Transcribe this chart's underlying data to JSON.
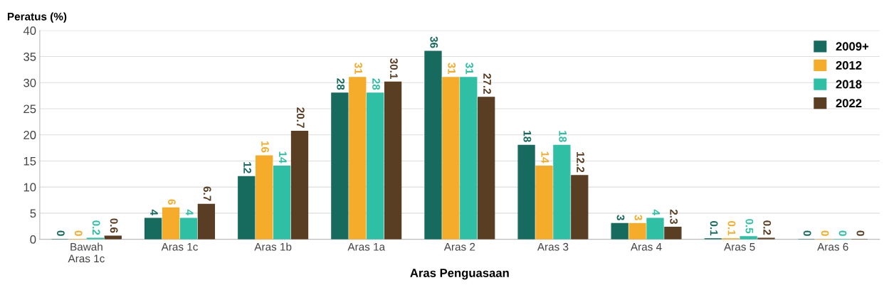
{
  "chart_data": {
    "type": "bar",
    "ylabel": "Peratus (%)",
    "xlabel": "Aras Penguasaan",
    "categories": [
      "Bawah\nAras 1c",
      "Aras 1c",
      "Aras 1b",
      "Aras 1a",
      "Aras 2",
      "Aras 3",
      "Aras 4",
      "Aras 5",
      "Aras 6"
    ],
    "series": [
      {
        "name": "2009+",
        "color": "#176b5e",
        "values": [
          0,
          4,
          12,
          28,
          36,
          18,
          3,
          0.1,
          0
        ]
      },
      {
        "name": "2012",
        "color": "#f5ac2a",
        "values": [
          0,
          6,
          16,
          31,
          31,
          14,
          3,
          0.1,
          0
        ]
      },
      {
        "name": "2018",
        "color": "#2fbfa5",
        "values": [
          0.2,
          4,
          14,
          28,
          31,
          18,
          4,
          0.5,
          0
        ]
      },
      {
        "name": "2022",
        "color": "#5a3e23",
        "values": [
          0.6,
          6.7,
          20.7,
          30.1,
          27.2,
          12.2,
          2.3,
          0.2,
          0
        ]
      }
    ],
    "ylim": [
      0,
      40
    ],
    "yticks": [
      0,
      5,
      10,
      15,
      20,
      25,
      30,
      35,
      40
    ],
    "grid": "y",
    "legend": "top right",
    "data_labels": true
  }
}
